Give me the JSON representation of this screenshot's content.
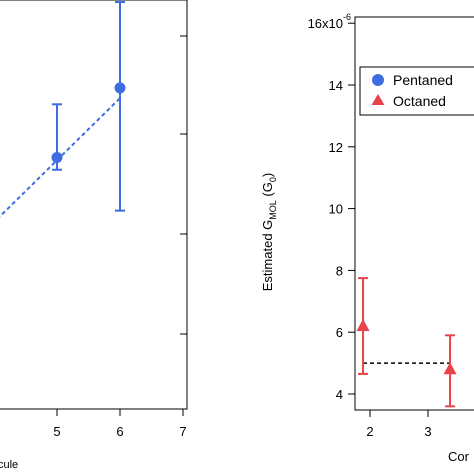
{
  "chart_data": [
    {
      "type": "scatter",
      "title": "",
      "xlabel": "",
      "ylabel": "",
      "xlim": [
        3.1,
        7
      ],
      "xticks": [
        5,
        6,
        7
      ],
      "x_tick_labels": [
        "5",
        "6",
        "7"
      ],
      "x_label_fragment": "cule",
      "grid": false,
      "series": [
        {
          "color": "#3d6de0",
          "marker": "circle",
          "x": [
            5,
            6
          ],
          "y": [
            0.615,
            0.785
          ],
          "err_low": [
            0.585,
            0.485
          ],
          "err_high": [
            0.745,
            0.995
          ]
        }
      ],
      "trend_line": {
        "style": "dashed",
        "color": "#3d6de0",
        "x": [
          3.1,
          6
        ],
        "y": [
          0.32,
          0.76
        ]
      }
    },
    {
      "type": "scatter",
      "title": "",
      "xlabel_fragment": "Cor",
      "ylabel": "Estimated G",
      "ylabel_sub": "MOL",
      "ylabel_units_pre": " (G",
      "ylabel_units_sub": "0",
      "ylabel_units_post": ")",
      "xlim": [
        1.77,
        3.5
      ],
      "ylim": [
        3.4,
        16.2
      ],
      "xticks": [
        2,
        3
      ],
      "x_tick_labels": [
        "2",
        "3"
      ],
      "yticks": [
        4,
        6,
        8,
        10,
        12,
        14,
        16
      ],
      "y_tick_labels": [
        "4",
        "6",
        "8",
        "10",
        "12",
        "14",
        "16x10"
      ],
      "y_top_exponent": "-6",
      "legend": {
        "placement": "top-right",
        "entries": [
          {
            "label": "Pentaned",
            "marker": "circle",
            "color": "#3d6de0"
          },
          {
            "label": "Octaned",
            "marker": "triangle",
            "color": "#e8434b"
          }
        ]
      },
      "series": [
        {
          "name": "Octaned",
          "color": "#e8434b",
          "marker": "triangle",
          "x": [
            1.88,
            3.38
          ],
          "y": [
            6.2,
            4.8
          ],
          "err_low": [
            4.65,
            3.6
          ],
          "err_high": [
            7.75,
            5.9
          ]
        }
      ],
      "reference_line": {
        "style": "dashed",
        "color": "#000000",
        "x": [
          1.88,
          3.4
        ],
        "y": [
          5.0,
          5.0
        ]
      }
    }
  ]
}
